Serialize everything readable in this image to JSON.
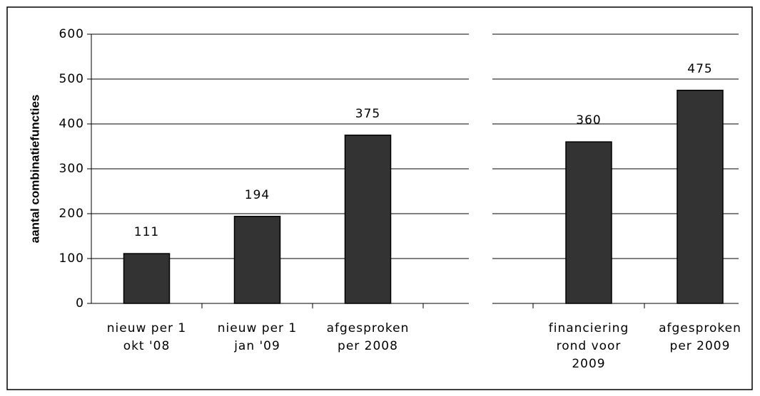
{
  "chart_data": [
    {
      "type": "bar",
      "y_label": "aantal combinatiefuncties",
      "categories": [
        [
          "nieuw per 1",
          "okt '08"
        ],
        [
          "nieuw per 1",
          "jan '09"
        ],
        [
          "afgesproken",
          "per 2008"
        ]
      ],
      "values": [
        111,
        194,
        375
      ],
      "color": "#333333",
      "ylim": [
        0,
        600
      ],
      "yticks": [
        0,
        100,
        200,
        300,
        400,
        500,
        600
      ],
      "grid": true
    },
    {
      "type": "bar",
      "categories": [
        [
          "financiering",
          "rond voor",
          "2009"
        ],
        [
          "afgesproken",
          "per 2009"
        ]
      ],
      "values": [
        360,
        475
      ],
      "color": "#333333",
      "ylim": [
        0,
        600
      ],
      "yticks": [
        0,
        100,
        200,
        300,
        400,
        500,
        600
      ],
      "grid": true
    }
  ]
}
